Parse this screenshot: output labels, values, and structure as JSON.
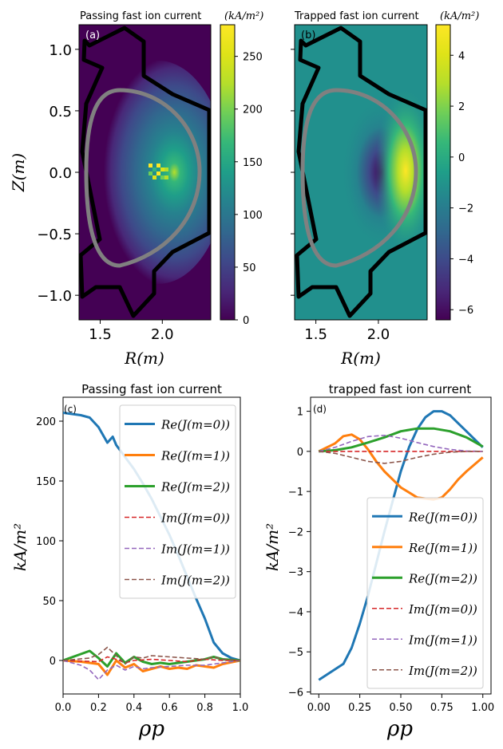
{
  "chart_data": [
    {
      "type": "heatmap",
      "panel_label": "(a)",
      "title": "Passing fast ion current",
      "xlabel": "R(m)",
      "ylabel": "Z(m)",
      "xlim": [
        1.33,
        2.39
      ],
      "ylim": [
        -1.2,
        1.2
      ],
      "xticks": [
        "1.5",
        "2.0"
      ],
      "yticks": [
        "1.0",
        "0.5",
        "0.0",
        "−0.5",
        "−1.0"
      ],
      "colorbar": {
        "label": "(kA/m²)",
        "range": [
          0,
          280
        ],
        "ticks": [
          "0",
          "50",
          "100",
          "150",
          "200",
          "250"
        ]
      },
      "colormap": "viridis"
    },
    {
      "type": "heatmap",
      "panel_label": "(b)",
      "title": "Trapped fast ion current",
      "xlabel": "R(m)",
      "ylabel": "",
      "xlim": [
        1.33,
        2.39
      ],
      "ylim": [
        -1.2,
        1.2
      ],
      "xticks": [
        "1.5",
        "2.0"
      ],
      "colorbar": {
        "label": "(kA/m²)",
        "range": [
          -6.4,
          5.2
        ],
        "ticks": [
          "4",
          "2",
          "0",
          "−2",
          "−4",
          "−6"
        ]
      },
      "colormap": "viridis"
    },
    {
      "type": "line",
      "panel_label": "(c)",
      "title": "Passing fast ion current",
      "xlabel": "ρp",
      "ylabel": "kA/m²",
      "xlim": [
        0,
        1
      ],
      "ylim": [
        -28,
        220
      ],
      "xticks": [
        "0.0",
        "0.2",
        "0.4",
        "0.6",
        "0.8",
        "1.0"
      ],
      "yticks": [
        "0",
        "50",
        "100",
        "150",
        "200"
      ],
      "legend_position": "top-right",
      "series": [
        {
          "name": "Re(J(m=0))",
          "color": "#1f77b4",
          "style": "solid",
          "x": [
            0,
            0.1,
            0.15,
            0.2,
            0.25,
            0.28,
            0.3,
            0.35,
            0.4,
            0.45,
            0.5,
            0.55,
            0.6,
            0.65,
            0.7,
            0.75,
            0.8,
            0.85,
            0.9,
            0.95,
            1.0
          ],
          "values": [
            207,
            205,
            203,
            195,
            182,
            187,
            180,
            170,
            160,
            148,
            135,
            120,
            105,
            88,
            70,
            52,
            35,
            15,
            6,
            2,
            0
          ]
        },
        {
          "name": "Re(J(m=1))",
          "color": "#ff7f0e",
          "style": "solid",
          "x": [
            0,
            0.1,
            0.2,
            0.25,
            0.3,
            0.35,
            0.4,
            0.45,
            0.5,
            0.55,
            0.6,
            0.65,
            0.7,
            0.75,
            0.8,
            0.85,
            0.9,
            1.0
          ],
          "values": [
            0,
            -1,
            -3,
            -12,
            0,
            -6,
            -3,
            -9,
            -7,
            -5,
            -7,
            -6,
            -7,
            -4,
            -5,
            -6,
            -3,
            0
          ]
        },
        {
          "name": "Re(J(m=2))",
          "color": "#2ca02c",
          "style": "solid",
          "x": [
            0,
            0.15,
            0.2,
            0.25,
            0.3,
            0.35,
            0.4,
            0.45,
            0.5,
            0.55,
            0.6,
            0.7,
            0.8,
            0.85,
            0.9,
            1.0
          ],
          "values": [
            0,
            8,
            2,
            -5,
            6,
            -2,
            3,
            -1,
            -3,
            -2,
            -3,
            -1,
            1,
            3,
            1,
            0
          ]
        },
        {
          "name": "Im(J(m=0))",
          "color": "#d62728",
          "style": "dashed",
          "x": [
            0,
            0.2,
            0.25,
            0.3,
            0.35,
            0.4,
            0.5,
            0.6,
            0.7,
            0.8,
            0.9,
            1.0
          ],
          "values": [
            0,
            -1,
            3,
            1,
            -2,
            0,
            1,
            0,
            -1,
            1,
            0,
            0
          ]
        },
        {
          "name": "Im(J(m=1))",
          "color": "#9467bd",
          "style": "dashed",
          "x": [
            0,
            0.1,
            0.15,
            0.2,
            0.25,
            0.3,
            0.35,
            0.4,
            0.45,
            0.5,
            0.6,
            0.7,
            0.8,
            0.9,
            1.0
          ],
          "values": [
            0,
            -4,
            -8,
            -16,
            -8,
            -4,
            -8,
            -5,
            -7,
            -6,
            -5,
            -4,
            -4,
            -2,
            0
          ]
        },
        {
          "name": "Im(J(m=2))",
          "color": "#8c564b",
          "style": "dashed",
          "x": [
            0,
            0.15,
            0.2,
            0.25,
            0.3,
            0.35,
            0.4,
            0.45,
            0.5,
            0.6,
            0.7,
            0.8,
            0.85,
            0.9,
            1.0
          ],
          "values": [
            0,
            2,
            5,
            11,
            4,
            -3,
            3,
            2,
            4,
            3,
            2,
            1,
            3,
            1,
            0
          ]
        }
      ]
    },
    {
      "type": "line",
      "panel_label": "(d)",
      "title": "trapped fast ion current",
      "xlabel": "ρp",
      "ylabel": "kA/m²",
      "xlim": [
        -0.05,
        1.05
      ],
      "ylim": [
        -6.05,
        1.35
      ],
      "xticks": [
        "0.00",
        "0.25",
        "0.50",
        "0.75",
        "1.00"
      ],
      "yticks": [
        "1",
        "0",
        "−1",
        "−2",
        "−3",
        "−4",
        "−5",
        "−6"
      ],
      "legend_position": "lower-right",
      "series": [
        {
          "name": "Re(J(m=0))",
          "color": "#1f77b4",
          "style": "solid",
          "x": [
            0,
            0.15,
            0.2,
            0.25,
            0.3,
            0.35,
            0.4,
            0.45,
            0.5,
            0.55,
            0.6,
            0.65,
            0.7,
            0.75,
            0.8,
            0.85,
            0.9,
            1.0
          ],
          "values": [
            -5.7,
            -5.3,
            -4.9,
            -4.3,
            -3.6,
            -2.8,
            -2.0,
            -1.25,
            -0.5,
            0.1,
            0.55,
            0.85,
            1.0,
            1.0,
            0.9,
            0.7,
            0.5,
            0.1
          ]
        },
        {
          "name": "Re(J(m=1))",
          "color": "#ff7f0e",
          "style": "solid",
          "x": [
            0,
            0.1,
            0.15,
            0.2,
            0.25,
            0.3,
            0.35,
            0.4,
            0.5,
            0.6,
            0.7,
            0.75,
            0.8,
            0.85,
            0.9,
            1.0
          ],
          "values": [
            0,
            0.2,
            0.38,
            0.42,
            0.3,
            0.05,
            -0.25,
            -0.5,
            -0.9,
            -1.15,
            -1.2,
            -1.15,
            -0.95,
            -0.7,
            -0.5,
            -0.15
          ]
        },
        {
          "name": "Re(J(m=2))",
          "color": "#2ca02c",
          "style": "solid",
          "x": [
            0,
            0.1,
            0.2,
            0.3,
            0.4,
            0.5,
            0.6,
            0.7,
            0.8,
            0.9,
            1.0
          ],
          "values": [
            0,
            0.03,
            0.1,
            0.22,
            0.35,
            0.5,
            0.57,
            0.57,
            0.5,
            0.35,
            0.12
          ]
        },
        {
          "name": "Im(J(m=0))",
          "color": "#d62728",
          "style": "dashed",
          "x": [
            0,
            0.5,
            1.0
          ],
          "values": [
            0,
            0,
            0
          ]
        },
        {
          "name": "Im(J(m=1))",
          "color": "#9467bd",
          "style": "dashed",
          "x": [
            0,
            0.1,
            0.2,
            0.3,
            0.4,
            0.5,
            0.6,
            0.7,
            0.8,
            0.9,
            1.0
          ],
          "values": [
            0,
            0.1,
            0.25,
            0.37,
            0.4,
            0.33,
            0.22,
            0.12,
            0.05,
            0.01,
            0
          ]
        },
        {
          "name": "Im(J(m=2))",
          "color": "#8c564b",
          "style": "dashed",
          "x": [
            0,
            0.1,
            0.2,
            0.3,
            0.4,
            0.5,
            0.6,
            0.7,
            0.8,
            0.9,
            1.0
          ],
          "values": [
            0,
            -0.05,
            -0.15,
            -0.25,
            -0.3,
            -0.25,
            -0.15,
            -0.07,
            -0.02,
            0,
            0
          ]
        }
      ]
    }
  ]
}
